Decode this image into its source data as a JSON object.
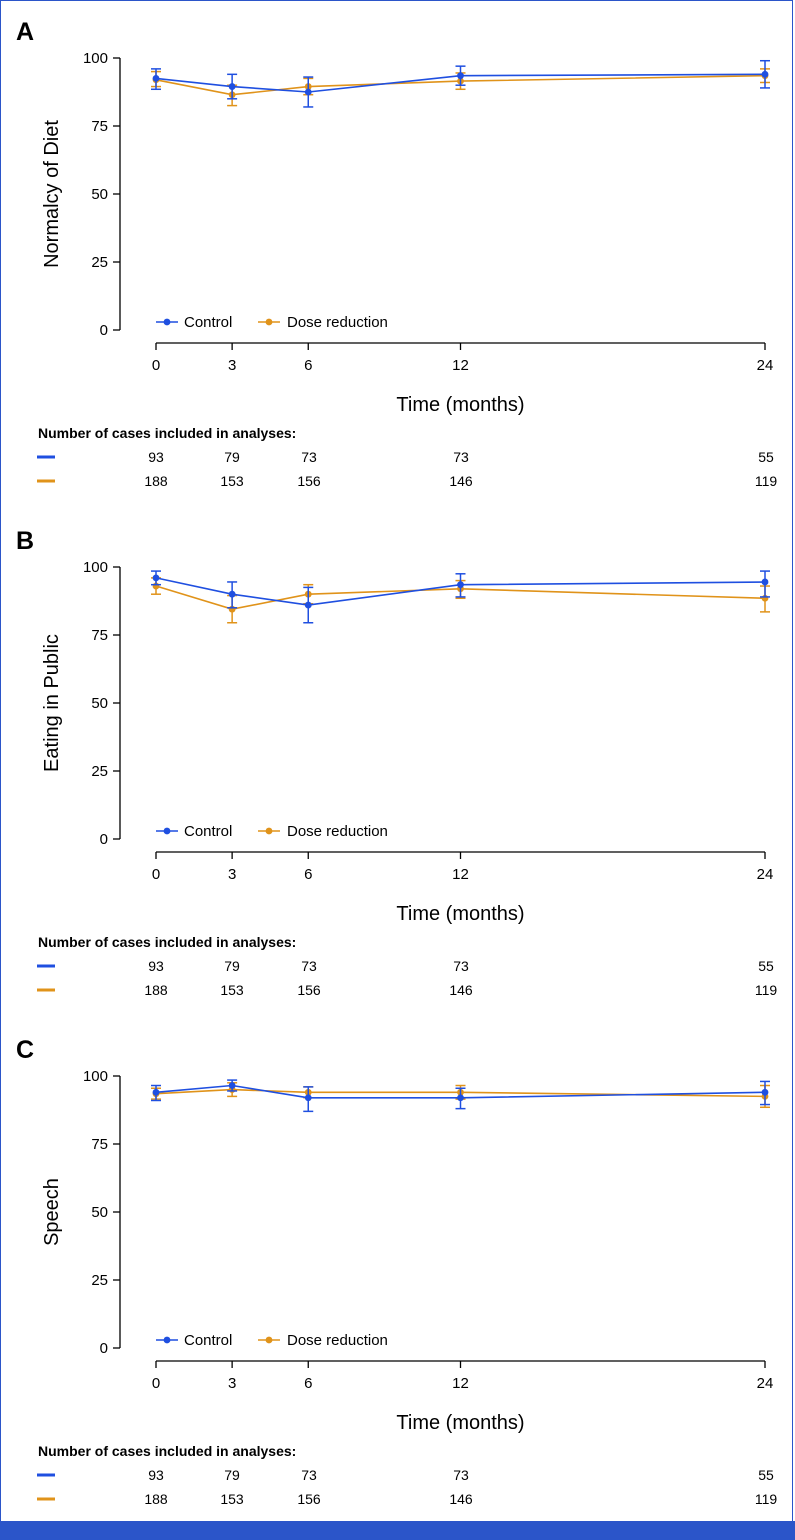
{
  "colors": {
    "control": "#1f4fe0",
    "dose_reduction": "#e0931a",
    "axis": "#000000",
    "frame": "#2b55c9",
    "bottom_bar": "#2b55c9"
  },
  "chart_data": [
    {
      "type": "line",
      "panel": "A",
      "ylabel": "Normalcy of Diet",
      "xlabel": "Time (months)",
      "x": [
        0,
        3,
        6,
        12,
        24
      ],
      "x_ticks": [
        "0",
        "3",
        "6",
        "12",
        "24"
      ],
      "ylim": [
        0,
        100
      ],
      "y_ticks": [
        "0",
        "25",
        "50",
        "75",
        "100"
      ],
      "legend": [
        "Control",
        "Dose reduction"
      ],
      "series": [
        {
          "name": "Control",
          "values": [
            92.5,
            89.5,
            87.5,
            93.5,
            94.0
          ],
          "err_low": [
            88.5,
            85.0,
            82.0,
            90.0,
            89.0
          ],
          "err_high": [
            96.0,
            94.0,
            93.0,
            97.0,
            99.0
          ]
        },
        {
          "name": "Dose reduction",
          "values": [
            92.0,
            86.5,
            89.5,
            91.5,
            93.5
          ],
          "err_low": [
            89.5,
            82.5,
            86.5,
            88.5,
            91.0
          ],
          "err_high": [
            95.0,
            90.0,
            92.5,
            94.5,
            96.0
          ]
        }
      ],
      "cases": {
        "title": "Number of cases included in analyses:",
        "control": [
          "93",
          "79",
          "73",
          "73",
          "55"
        ],
        "dose_reduction": [
          "188",
          "153",
          "156",
          "146",
          "119"
        ]
      }
    },
    {
      "type": "line",
      "panel": "B",
      "ylabel": "Eating in Public",
      "xlabel": "Time (months)",
      "x": [
        0,
        3,
        6,
        12,
        24
      ],
      "x_ticks": [
        "0",
        "3",
        "6",
        "12",
        "24"
      ],
      "ylim": [
        0,
        100
      ],
      "y_ticks": [
        "0",
        "25",
        "50",
        "75",
        "100"
      ],
      "legend": [
        "Control",
        "Dose reduction"
      ],
      "series": [
        {
          "name": "Control",
          "values": [
            96.0,
            90.0,
            86.0,
            93.5,
            94.5
          ],
          "err_low": [
            93.5,
            85.0,
            79.5,
            89.0,
            89.0
          ],
          "err_high": [
            98.5,
            94.5,
            92.5,
            97.5,
            98.5
          ]
        },
        {
          "name": "Dose reduction",
          "values": [
            93.0,
            84.5,
            90.0,
            92.0,
            88.5
          ],
          "err_low": [
            90.0,
            79.5,
            86.5,
            88.5,
            83.5
          ],
          "err_high": [
            96.0,
            89.5,
            93.5,
            95.0,
            93.0
          ]
        }
      ],
      "cases": {
        "title": "Number of cases included in analyses:",
        "control": [
          "93",
          "79",
          "73",
          "73",
          "55"
        ],
        "dose_reduction": [
          "188",
          "153",
          "156",
          "146",
          "119"
        ]
      }
    },
    {
      "type": "line",
      "panel": "C",
      "ylabel": "Speech",
      "xlabel": "Time (months)",
      "x": [
        0,
        3,
        6,
        12,
        24
      ],
      "x_ticks": [
        "0",
        "3",
        "6",
        "12",
        "24"
      ],
      "ylim": [
        0,
        100
      ],
      "y_ticks": [
        "0",
        "25",
        "50",
        "75",
        "100"
      ],
      "legend": [
        "Control",
        "Dose reduction"
      ],
      "series": [
        {
          "name": "Control",
          "values": [
            94.0,
            96.5,
            92.0,
            92.0,
            94.0
          ],
          "err_low": [
            91.0,
            94.5,
            87.0,
            88.0,
            89.5
          ],
          "err_high": [
            96.5,
            98.5,
            96.0,
            95.5,
            98.0
          ]
        },
        {
          "name": "Dose reduction",
          "values": [
            93.5,
            95.0,
            94.0,
            94.0,
            92.5
          ],
          "err_low": [
            91.5,
            92.5,
            92.0,
            91.5,
            88.5
          ],
          "err_high": [
            95.5,
            97.5,
            96.0,
            96.5,
            96.5
          ]
        }
      ],
      "cases": {
        "title": "Number of cases included in analyses:",
        "control": [
          "93",
          "79",
          "73",
          "73",
          "55"
        ],
        "dose_reduction": [
          "188",
          "153",
          "156",
          "146",
          "119"
        ]
      }
    }
  ]
}
